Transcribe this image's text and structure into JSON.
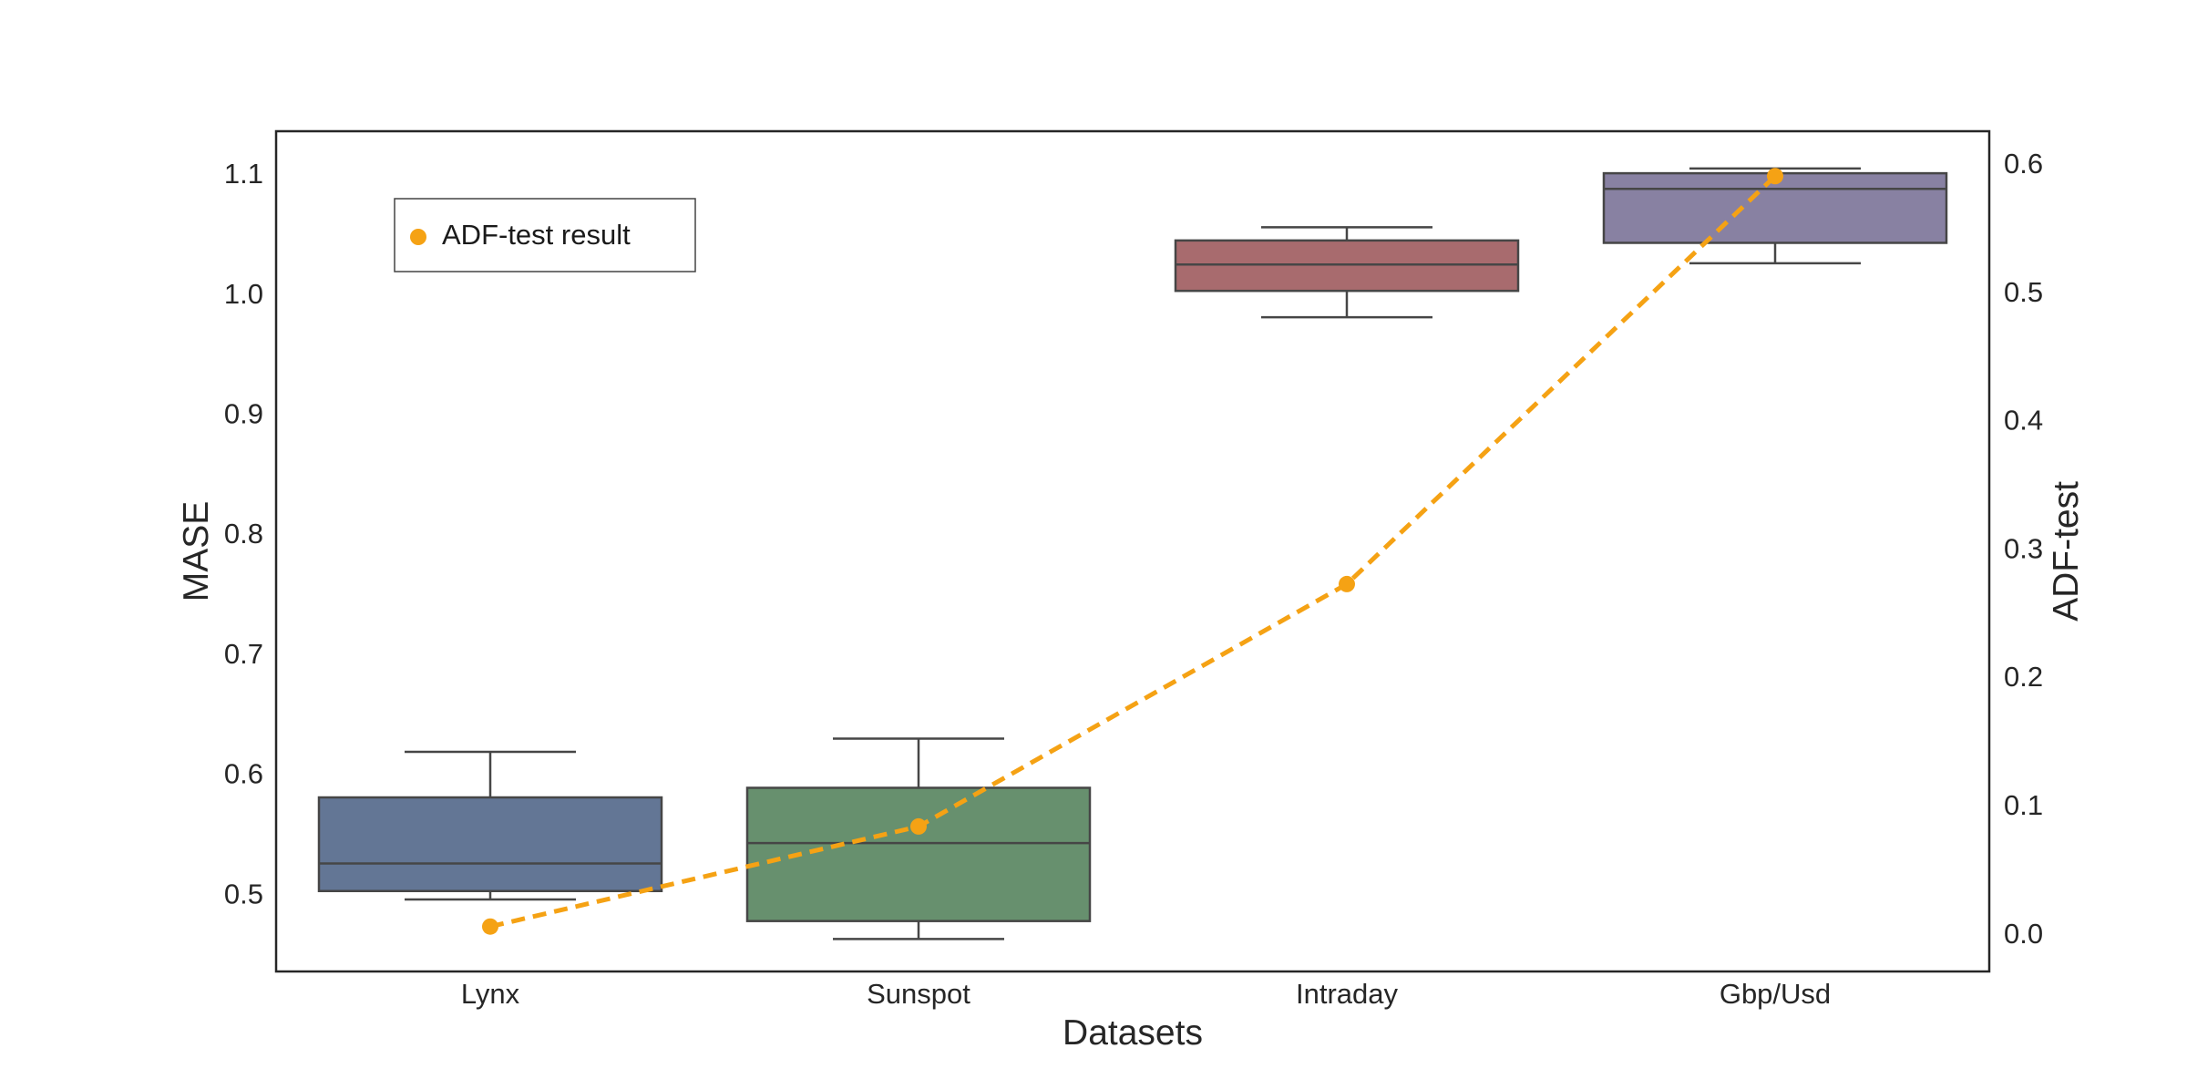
{
  "chart_data": {
    "type": "box+line",
    "title": "",
    "xlabel": "Datasets",
    "ylabel": "MASE",
    "y2label": "ADF-test",
    "categories": [
      "Lynx",
      "Sunspot",
      "Intraday",
      "Gbp/Usd"
    ],
    "ylim": [
      0.435,
      1.135
    ],
    "y2lim": [
      -0.03,
      0.625
    ],
    "yticks": [
      "0.5",
      "0.6",
      "0.7",
      "0.8",
      "0.9",
      "1.0",
      "1.1"
    ],
    "y2ticks": [
      "0.0",
      "0.1",
      "0.2",
      "0.3",
      "0.4",
      "0.5",
      "0.6"
    ],
    "grid": false,
    "boxes": [
      {
        "category": "Lynx",
        "whisker_low": 0.495,
        "q1": 0.502,
        "median": 0.525,
        "q3": 0.58,
        "whisker_high": 0.618,
        "color": "#637695"
      },
      {
        "category": "Sunspot",
        "whisker_low": 0.462,
        "q1": 0.477,
        "median": 0.542,
        "q3": 0.588,
        "whisker_high": 0.629,
        "color": "#67906e"
      },
      {
        "category": "Intraday",
        "whisker_low": 0.98,
        "q1": 1.002,
        "median": 1.024,
        "q3": 1.044,
        "whisker_high": 1.055,
        "color": "#a86b6e"
      },
      {
        "category": "Gbp/Usd",
        "whisker_low": 1.025,
        "q1": 1.042,
        "median": 1.087,
        "q3": 1.1,
        "whisker_high": 1.104,
        "color": "#8881a2"
      }
    ],
    "series": [
      {
        "name": "ADF-test result",
        "axis": "right",
        "color": "#f5a214",
        "style": "dashed",
        "values": [
          0.005,
          0.083,
          0.272,
          0.59
        ]
      }
    ],
    "legend": {
      "position": "top-left",
      "entries": [
        "ADF-test result"
      ]
    }
  }
}
